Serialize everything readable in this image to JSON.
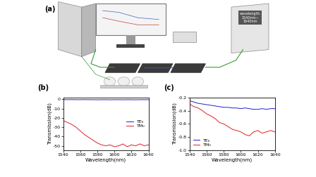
{
  "diagram": {
    "label": "(a)",
    "device_text": [
      "wavelength:",
      "1540nm~",
      "1640nm"
    ]
  },
  "chart_data": [
    {
      "type": "line",
      "title": "(b)",
      "x_label": "Wavelength(nm)",
      "y_label": "Transmission(dB)",
      "x": [
        1540,
        1545,
        1550,
        1555,
        1560,
        1565,
        1570,
        1575,
        1580,
        1585,
        1590,
        1595,
        1600,
        1605,
        1610,
        1615,
        1620,
        1625,
        1630,
        1635,
        1640
      ],
      "series": [
        {
          "name": "TE₀",
          "color": "#1f1fd0",
          "values": [
            -0.4,
            -0.5,
            -0.4,
            -0.5,
            -0.5,
            -0.4,
            -0.5,
            -0.5,
            -0.6,
            -0.5,
            -0.5,
            -0.6,
            -0.5,
            -0.5,
            -0.6,
            -0.5,
            -0.5,
            -0.6,
            -0.5,
            -0.5,
            -0.5
          ]
        },
        {
          "name": "TM₀",
          "color": "#e02020",
          "values": [
            -23,
            -25,
            -27,
            -30,
            -34,
            -38,
            -41,
            -44,
            -47,
            -49,
            -50,
            -49,
            -51,
            -50,
            -48,
            -51,
            -49,
            -50,
            -48,
            -50,
            -49
          ]
        }
      ],
      "xlim": [
        1540,
        1640
      ],
      "xticks": [
        1540,
        1560,
        1580,
        1600,
        1620,
        1640
      ],
      "ylim": [
        -55,
        2
      ],
      "yticks": [
        -50,
        -40,
        -30,
        -20,
        -10,
        0
      ],
      "legend": "center right"
    },
    {
      "type": "line",
      "title": "(c)",
      "x_label": "Wavelength(nm)",
      "y_label": "Transmission(dB)",
      "x": [
        1540,
        1545,
        1550,
        1555,
        1560,
        1565,
        1570,
        1575,
        1580,
        1585,
        1590,
        1595,
        1600,
        1605,
        1610,
        1615,
        1620,
        1625,
        1630,
        1635,
        1640
      ],
      "series": [
        {
          "name": "TE₀",
          "color": "#1f1fd0",
          "values": [
            -0.25,
            -0.27,
            -0.29,
            -0.3,
            -0.31,
            -0.32,
            -0.33,
            -0.34,
            -0.35,
            -0.35,
            -0.36,
            -0.36,
            -0.37,
            -0.36,
            -0.37,
            -0.38,
            -0.38,
            -0.37,
            -0.38,
            -0.37,
            -0.37
          ]
        },
        {
          "name": "TM₀",
          "color": "#e02020",
          "values": [
            -0.3,
            -0.34,
            -0.36,
            -0.4,
            -0.45,
            -0.48,
            -0.52,
            -0.58,
            -0.6,
            -0.64,
            -0.68,
            -0.7,
            -0.72,
            -0.76,
            -0.78,
            -0.72,
            -0.7,
            -0.74,
            -0.72,
            -0.7,
            -0.72
          ]
        }
      ],
      "xlim": [
        1540,
        1640
      ],
      "xticks": [
        1540,
        1560,
        1580,
        1600,
        1620,
        1640
      ],
      "ylim": [
        -1.0,
        -0.2
      ],
      "yticks": [
        -1.0,
        -0.8,
        -0.6,
        -0.4,
        -0.2
      ],
      "legend": "lower left"
    }
  ]
}
